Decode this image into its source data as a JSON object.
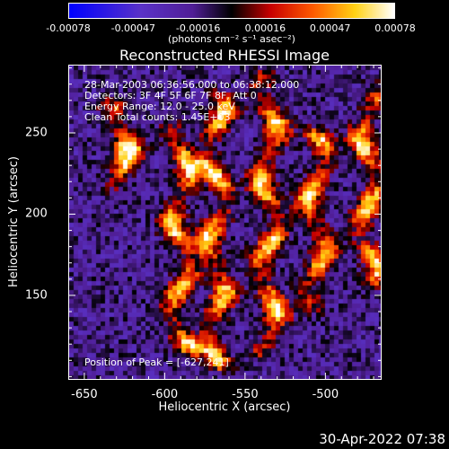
{
  "chart_data": {
    "type": "heatmap",
    "title": "Reconstructed RHESSI Image",
    "xlabel": "Heliocentric X (arcsec)",
    "ylabel": "Heliocentric Y (arcsec)",
    "xlim": [
      -660,
      -465
    ],
    "ylim": [
      98,
      292
    ],
    "x_ticks": [
      "-650",
      "-600",
      "-550",
      "-500"
    ],
    "x_tick_values": [
      -650,
      -600,
      -550,
      -500
    ],
    "y_ticks": [
      "150",
      "200",
      "250"
    ],
    "y_tick_values": [
      150,
      200,
      250
    ],
    "colorbar": {
      "ticks": [
        "-0.00078",
        "-0.00047",
        "-0.00016",
        "0.00016",
        "0.00047",
        "0.00078"
      ],
      "tick_values": [
        -0.00078,
        -0.00047,
        -0.00016,
        0.00016,
        0.00047,
        0.00078
      ],
      "unit_label": "(photons cm⁻² s⁻¹ asec⁻²)"
    },
    "annotations": [
      "28-Mar-2003 06:36:56.000 to 06:38:12.000",
      "Detectors: 3F 4F 5F 6F 7F 8F, Att 0",
      "Energy Range: 12.0 - 25.0 keV",
      "Clean    Total counts: 1.45E+03"
    ],
    "peak_label": "Position of Peak = [-627,241]",
    "bright_ridges": [
      {
        "x": -627,
        "y_range": [
          220,
          262
        ]
      },
      {
        "x": -590,
        "y_range": [
          120,
          250
        ]
      },
      {
        "x": -568,
        "y_range": [
          110,
          270
        ]
      },
      {
        "x": -535,
        "y_range": [
          120,
          280
        ]
      },
      {
        "x": -505,
        "y_range": [
          150,
          245
        ]
      },
      {
        "x": -472,
        "y_range": [
          160,
          270
        ]
      }
    ]
  },
  "timestamp": "30-Apr-2022 07:38"
}
